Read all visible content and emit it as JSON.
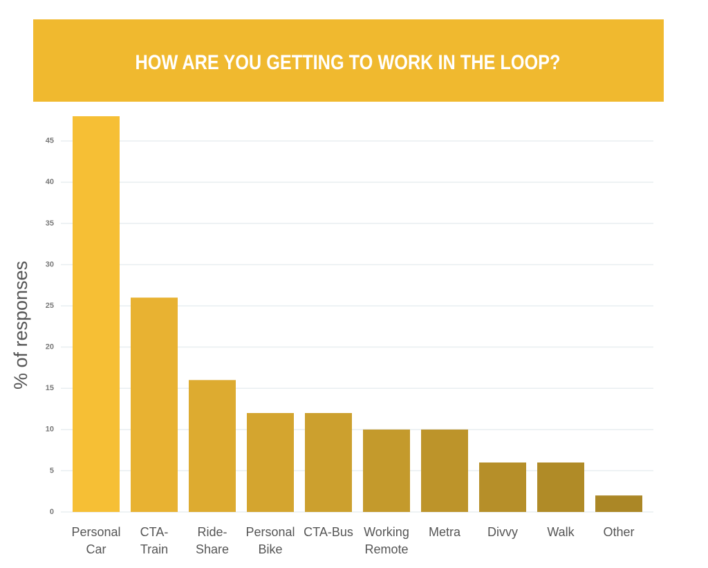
{
  "chart_data": {
    "type": "bar",
    "title": "HOW ARE YOU GETTING TO WORK IN THE LOOP?",
    "y_label": "% of responses",
    "categories": [
      "Personal Car",
      "CTA-Train",
      "Ride-Share",
      "Personal Bike",
      "CTA-Bus",
      "Working Remote",
      "Metra",
      "Divvy",
      "Walk",
      "Other"
    ],
    "values": [
      48,
      26,
      16,
      12,
      12,
      10,
      10,
      6,
      6,
      2
    ],
    "colors": [
      "#f6bf35",
      "#e8b232",
      "#ddab30",
      "#d4a52f",
      "#cca02e",
      "#c49a2c",
      "#bd942a",
      "#b68f29",
      "#b08b27",
      "#ab8726"
    ],
    "ylim": [
      0,
      48
    ],
    "yticks": [
      0,
      5,
      10,
      15,
      20,
      25,
      30,
      35,
      40,
      45
    ],
    "grid": true
  }
}
